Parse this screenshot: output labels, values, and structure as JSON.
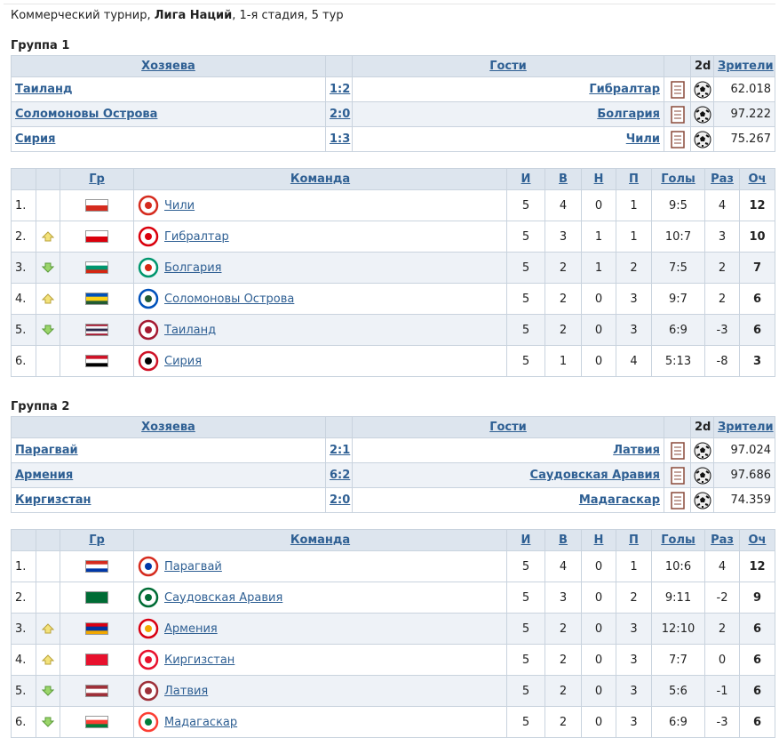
{
  "header": {
    "prefix": "Коммерческий турнир,",
    "league": "Лига Наций",
    "suffix": ", 1-я стадия, 5 тур"
  },
  "groups": [
    {
      "title": "Группа 1",
      "matches": {
        "headers": [
          "Хозяева",
          "Гости",
          "2d",
          "Зрители"
        ],
        "rows": [
          [
            "Таиланд",
            "1:2",
            "Гибралтар",
            "62.018"
          ],
          [
            "Соломоновы Острова",
            "2:0",
            "Болгария",
            "97.222"
          ],
          [
            "Сирия",
            "1:3",
            "Чили",
            "75.267"
          ]
        ]
      },
      "standings": {
        "headers": [
          "Гр",
          "Команда",
          "И",
          "В",
          "Н",
          "П",
          "Голы",
          "Раз",
          "Оч"
        ],
        "rows": [
          {
            "rank": "1.",
            "trend": null,
            "flag": [
              "#ffffff",
              "#d52b1e"
            ],
            "team": "Чили",
            "stats": [
              5,
              4,
              0,
              1,
              "9:5",
              4,
              12
            ]
          },
          {
            "rank": "2.",
            "trend": "up",
            "flag": [
              "#ffffff",
              "#da000c"
            ],
            "team": "Гибралтар",
            "stats": [
              5,
              3,
              1,
              1,
              "10:7",
              3,
              10
            ]
          },
          {
            "rank": "3.",
            "trend": "down",
            "flag": [
              "#ffffff",
              "#00966e",
              "#d62612"
            ],
            "team": "Болгария",
            "stats": [
              5,
              2,
              1,
              2,
              "7:5",
              2,
              7
            ]
          },
          {
            "rank": "4.",
            "trend": "up",
            "flag": [
              "#0051ba",
              "#fcd116",
              "#215b33"
            ],
            "team": "Соломоновы Острова",
            "stats": [
              5,
              2,
              0,
              3,
              "9:7",
              2,
              6
            ]
          },
          {
            "rank": "5.",
            "trend": "down",
            "flag": [
              "#a51931",
              "#f4f5f8",
              "#2d2a4a",
              "#f4f5f8",
              "#a51931"
            ],
            "team": "Таиланд",
            "stats": [
              5,
              2,
              0,
              3,
              "6:9",
              -3,
              6
            ]
          },
          {
            "rank": "6.",
            "trend": null,
            "flag": [
              "#ce1126",
              "#ffffff",
              "#000000"
            ],
            "team": "Сирия",
            "stats": [
              5,
              1,
              0,
              4,
              "5:13",
              -8,
              3
            ]
          }
        ]
      }
    },
    {
      "title": "Группа 2",
      "matches": {
        "headers": [
          "Хозяева",
          "Гости",
          "2d",
          "Зрители"
        ],
        "rows": [
          [
            "Парагвай",
            "2:1",
            "Латвия",
            "97.024"
          ],
          [
            "Армения",
            "6:2",
            "Саудовская Аравия",
            "97.686"
          ],
          [
            "Киргизстан",
            "2:0",
            "Мадагаскар",
            "74.359"
          ]
        ]
      },
      "standings": {
        "headers": [
          "Гр",
          "Команда",
          "И",
          "В",
          "Н",
          "П",
          "Голы",
          "Раз",
          "Оч"
        ],
        "rows": [
          {
            "rank": "1.",
            "trend": null,
            "flag": [
              "#d52b1e",
              "#ffffff",
              "#0038a8"
            ],
            "team": "Парагвай",
            "stats": [
              5,
              4,
              0,
              1,
              "10:6",
              4,
              12
            ]
          },
          {
            "rank": "2.",
            "trend": null,
            "flag": [
              "#006c35"
            ],
            "team": "Саудовская Аравия",
            "stats": [
              5,
              3,
              0,
              2,
              "9:11",
              -2,
              9
            ]
          },
          {
            "rank": "3.",
            "trend": "up",
            "flag": [
              "#d90012",
              "#0033a0",
              "#f2a800"
            ],
            "team": "Армения",
            "stats": [
              5,
              2,
              0,
              3,
              "12:10",
              2,
              6
            ]
          },
          {
            "rank": "4.",
            "trend": "up",
            "flag": [
              "#e8112d"
            ],
            "team": "Киргизстан",
            "stats": [
              5,
              2,
              0,
              3,
              "7:7",
              0,
              6
            ]
          },
          {
            "rank": "5.",
            "trend": "down",
            "flag": [
              "#9e3039",
              "#ffffff",
              "#9e3039"
            ],
            "team": "Латвия",
            "stats": [
              5,
              2,
              0,
              3,
              "5:6",
              -1,
              6
            ]
          },
          {
            "rank": "6.",
            "trend": "down",
            "flag": [
              "#ffffff",
              "#fc3d32",
              "#007e3a"
            ],
            "team": "Мадагаскар",
            "stats": [
              5,
              2,
              0,
              3,
              "6:9",
              -3,
              6
            ]
          }
        ]
      }
    }
  ]
}
